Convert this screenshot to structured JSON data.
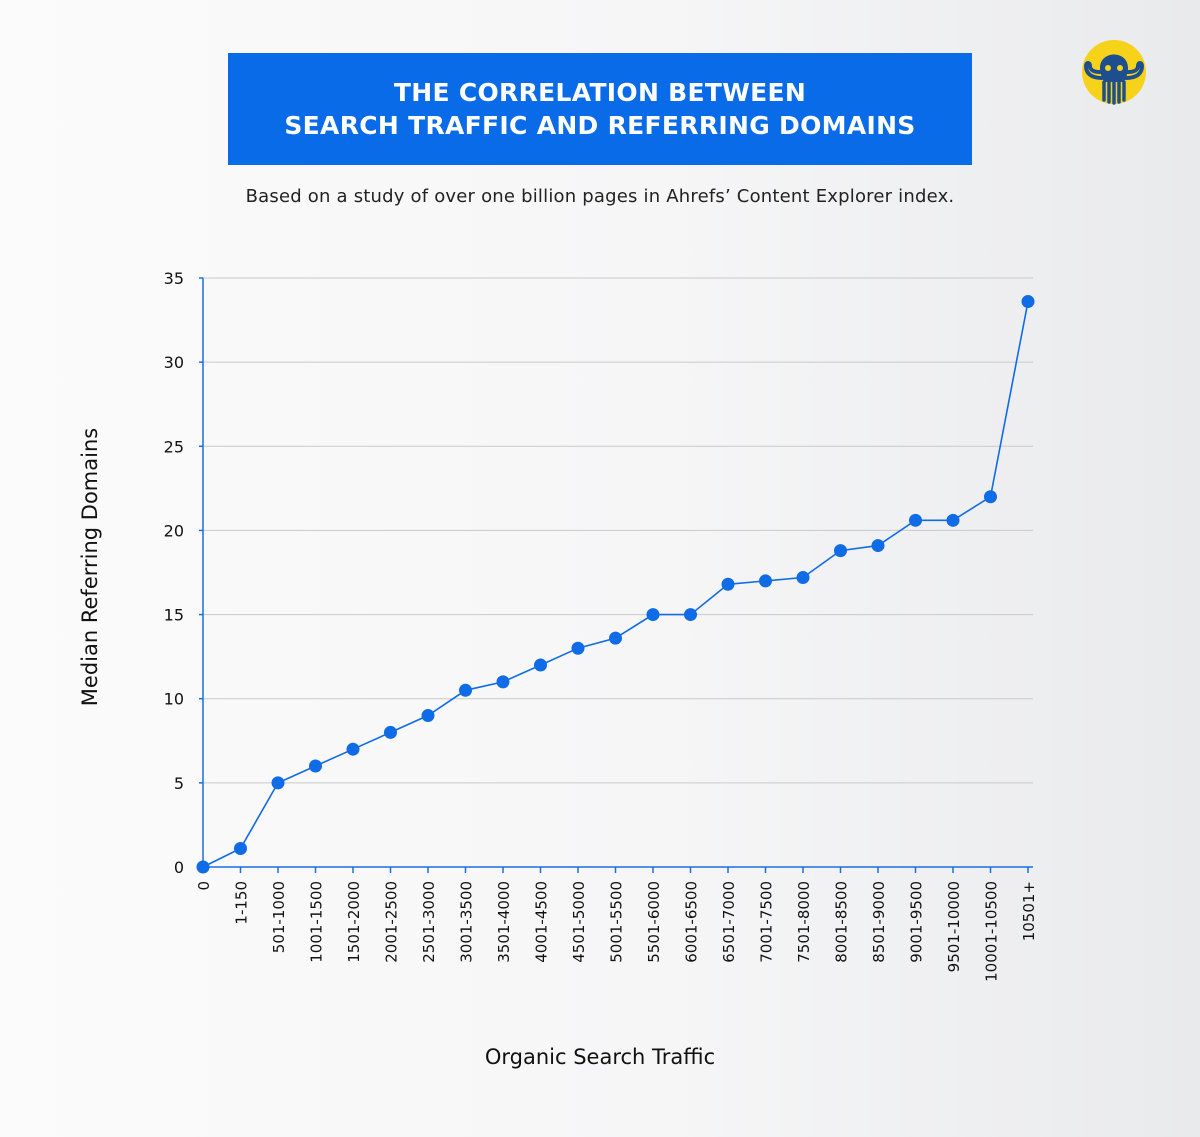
{
  "header": {
    "title_line1": "THE CORRELATION BETWEEN",
    "title_line2": "SEARCH TRAFFIC AND REFERRING DOMAINS",
    "subtitle": "Based on a study of over one billion pages in Ahrefs’ Content Explorer index."
  },
  "logo": {
    "icon": "octopus-mascot-icon"
  },
  "colors": {
    "title_bg": "#0a6be8",
    "series": "#0f6be6",
    "axis": "#1a6fe0",
    "grid": "#c9c9c9",
    "logo_circle": "#f7d21b",
    "logo_octopus": "#1d4f8f"
  },
  "chart_data": {
    "type": "line",
    "title": "THE CORRELATION BETWEEN SEARCH TRAFFIC AND REFERRING DOMAINS",
    "subtitle": "Based on a study of over one billion pages in Ahrefs’ Content Explorer index.",
    "xlabel": "Organic Search Traffic",
    "ylabel": "Median Referring Domains",
    "ylim": [
      0,
      35
    ],
    "yticks": [
      0,
      5,
      10,
      15,
      20,
      25,
      30,
      35
    ],
    "grid": true,
    "legend": "none",
    "categories": [
      "0",
      "1-150",
      "501-1000",
      "1001-1500",
      "1501-2000",
      "2001-2500",
      "2501-3000",
      "3001-3500",
      "3501-4000",
      "4001-4500",
      "4501-5000",
      "5001-5500",
      "5501-6000",
      "6001-6500",
      "6501-7000",
      "7001-7500",
      "7501-8000",
      "8001-8500",
      "8501-9000",
      "9001-9500",
      "9501-10000",
      "10001-10500",
      "10501+"
    ],
    "series": [
      {
        "name": "Median Referring Domains",
        "values": [
          0,
          1.1,
          5,
          6,
          7,
          8,
          9,
          10.5,
          11,
          12,
          13,
          13.6,
          15,
          15,
          16.8,
          17,
          17.2,
          18.8,
          19.1,
          20.6,
          20.6,
          22,
          33.6
        ]
      }
    ]
  }
}
